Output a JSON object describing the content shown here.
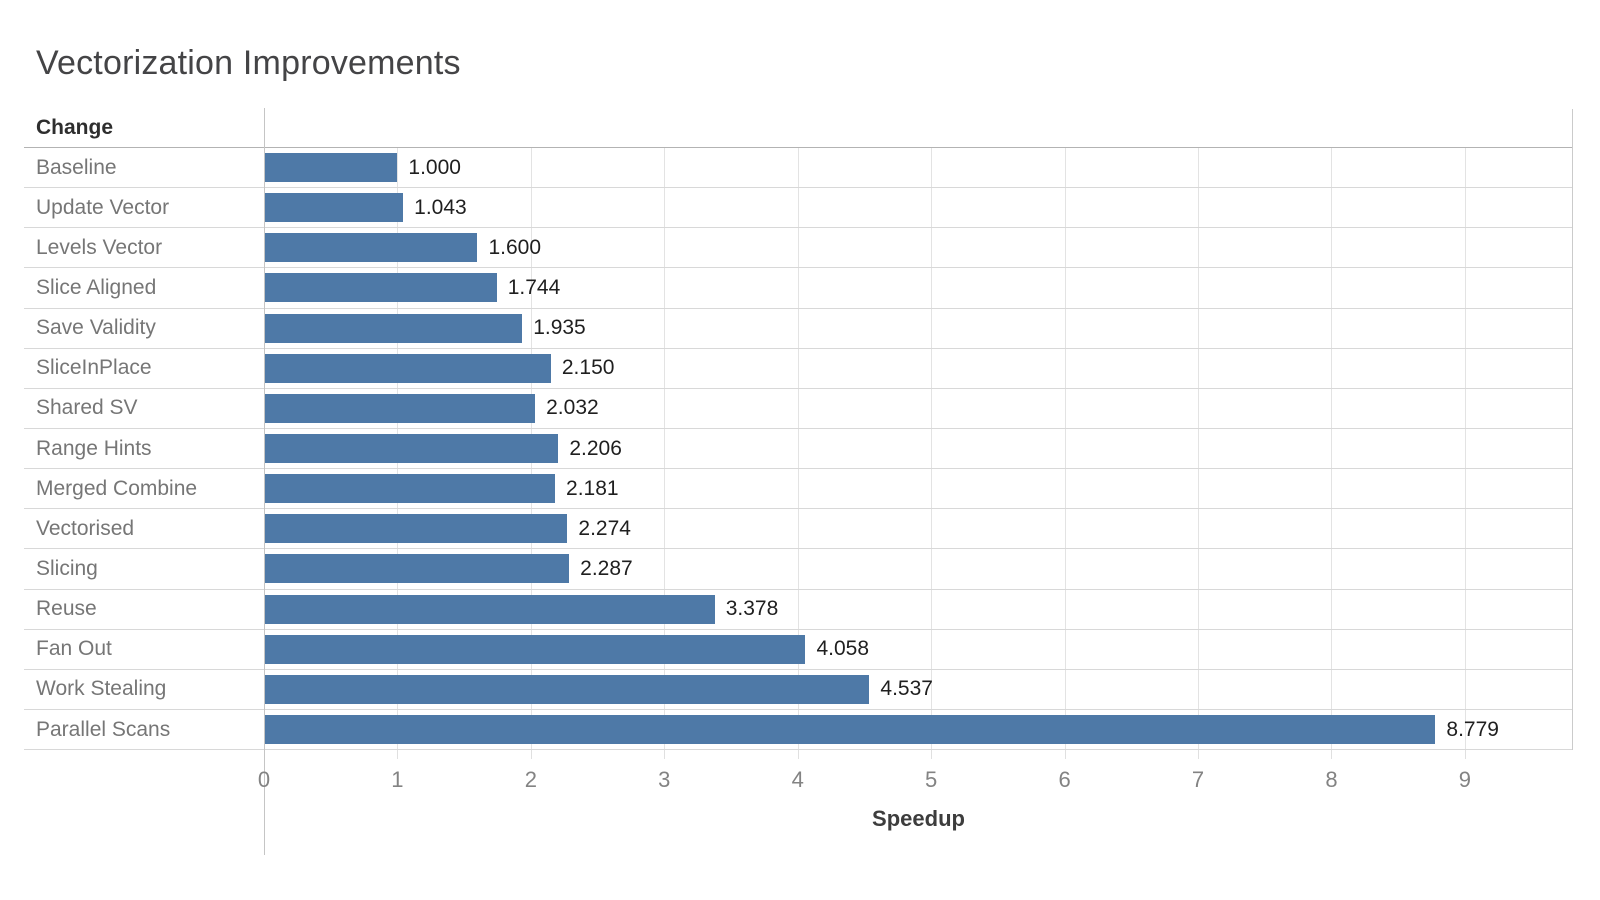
{
  "title": "Vectorization Improvements",
  "chart_data": {
    "type": "bar",
    "orientation": "horizontal",
    "title": "Vectorization Improvements",
    "category_header": "Change",
    "categories": [
      "Baseline",
      "Update Vector",
      "Levels Vector",
      "Slice Aligned",
      "Save Validity",
      "SliceInPlace",
      "Shared SV",
      "Range Hints",
      "Merged Combine",
      "Vectorised",
      "Slicing",
      "Reuse",
      "Fan Out",
      "Work Stealing",
      "Parallel Scans"
    ],
    "values": [
      1.0,
      1.043,
      1.6,
      1.744,
      1.935,
      2.15,
      2.032,
      2.206,
      2.181,
      2.274,
      2.287,
      3.378,
      4.058,
      4.537,
      8.779
    ],
    "value_labels": [
      "1.000",
      "1.043",
      "1.600",
      "1.744",
      "1.935",
      "2.150",
      "2.032",
      "2.206",
      "2.181",
      "2.274",
      "2.287",
      "3.378",
      "4.058",
      "4.537",
      "8.779"
    ],
    "xlabel": "Speedup",
    "x_ticks": [
      0,
      1,
      2,
      3,
      4,
      5,
      6,
      7,
      8,
      9
    ],
    "xlim": [
      0,
      9.81
    ],
    "grid": true,
    "legend": false,
    "bar_color": "#4e79a7"
  }
}
